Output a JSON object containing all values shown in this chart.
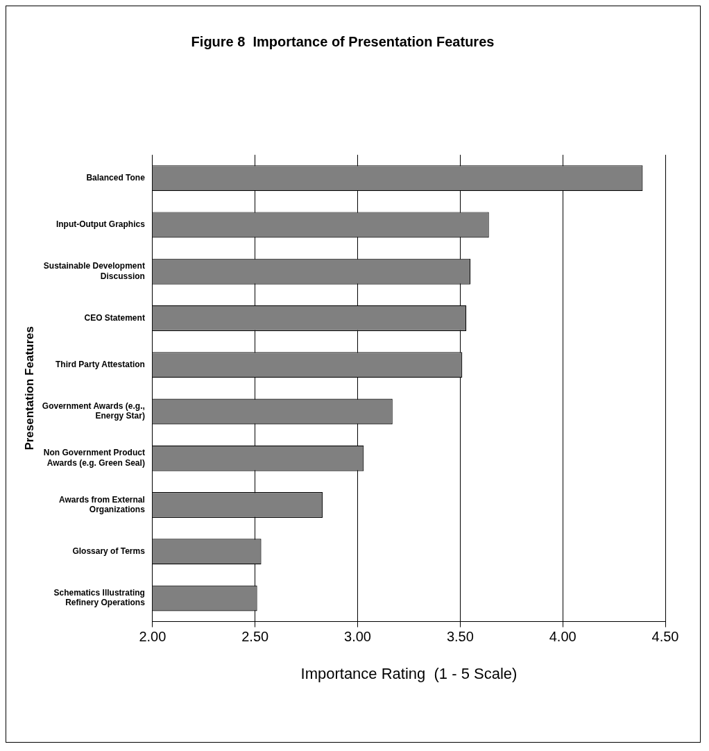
{
  "chart_data": {
    "type": "bar",
    "orientation": "horizontal",
    "title": "Figure 8  Importance of Presentation Features",
    "xlabel": "Importance Rating  (1 - 5 Scale)",
    "ylabel": "Presentation Features",
    "categories": [
      "Balanced Tone",
      "Input-Output Graphics",
      "Sustainable Development Discussion",
      "CEO Statement",
      "Third Party Attestation",
      "Government Awards (e.g., Energy Star)",
      "Non Government Product Awards (e.g. Green Seal)",
      "Awards from External Organizations",
      "Glossary of Terms",
      "Schematics Illustrating Refinery Operations"
    ],
    "values": [
      4.39,
      3.64,
      3.55,
      3.53,
      3.51,
      3.17,
      3.03,
      2.83,
      2.53,
      2.51
    ],
    "color": "#808080",
    "xlim": [
      2,
      4.5
    ],
    "xticks": [
      {
        "value": 2,
        "label": "2.00"
      },
      {
        "value": 2.5,
        "label": "2.50"
      },
      {
        "value": 3,
        "label": "3.00"
      },
      {
        "value": 3.5,
        "label": "3.50"
      },
      {
        "value": 4,
        "label": "4.00"
      },
      {
        "value": 4.5,
        "label": "4.50"
      }
    ],
    "grid": "x",
    "legend": false
  }
}
